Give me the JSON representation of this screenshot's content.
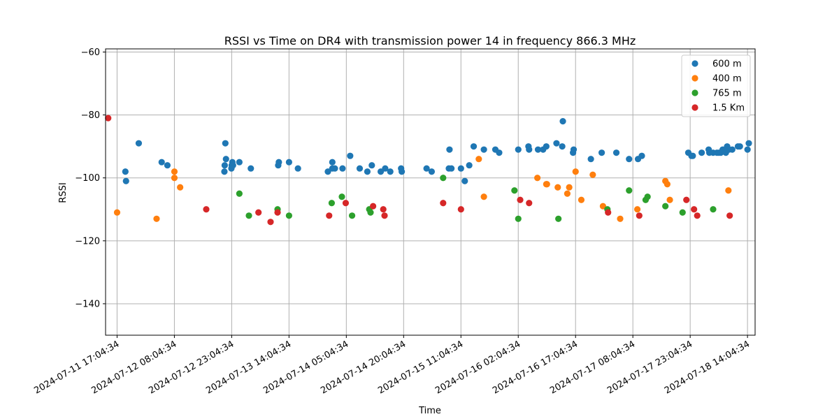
{
  "chart_data": {
    "type": "scatter",
    "title": "RSSI vs Time on DR4 with transmission power 14 in frequency 866.3 MHz",
    "xlabel": "Time",
    "ylabel": "RSSI",
    "ylim": [
      -150,
      -59
    ],
    "y_ticks": [
      -140,
      -120,
      -100,
      -80,
      -60
    ],
    "x_range": [
      "2024-07-11 14:04",
      "2024-07-18 16:04"
    ],
    "x_ticks": [
      "2024-07-11 17:04:34",
      "2024-07-12 08:04:34",
      "2024-07-12 23:04:34",
      "2024-07-13 14:04:34",
      "2024-07-14 05:04:34",
      "2024-07-14 20:04:34",
      "2024-07-15 11:04:34",
      "2024-07-16 02:04:34",
      "2024-07-16 17:04:34",
      "2024-07-17 08:04:34",
      "2024-07-17 23:04:34",
      "2024-07-18 14:04:34"
    ],
    "grid": true,
    "legend_position": "top-right",
    "series": [
      {
        "name": "600 m",
        "color": "#1f77b4",
        "points": [
          [
            "2024-07-11 19:15",
            -98
          ],
          [
            "2024-07-11 19:25",
            -101
          ],
          [
            "2024-07-11 22:45",
            -89
          ],
          [
            "2024-07-12 04:45",
            -95
          ],
          [
            "2024-07-12 06:15",
            -96
          ],
          [
            "2024-07-12 21:25",
            -89
          ],
          [
            "2024-07-12 21:15",
            -96
          ],
          [
            "2024-07-12 21:10",
            -98
          ],
          [
            "2024-07-12 21:35",
            -94
          ],
          [
            "2024-07-12 23:15",
            -95
          ],
          [
            "2024-07-12 23:05",
            -96
          ],
          [
            "2024-07-12 23:25",
            -96
          ],
          [
            "2024-07-12 23:00",
            -97
          ],
          [
            "2024-07-13 01:05",
            -95
          ],
          [
            "2024-07-13 04:05",
            -97
          ],
          [
            "2024-07-13 11:25",
            -95
          ],
          [
            "2024-07-13 11:15",
            -96
          ],
          [
            "2024-07-13 14:05",
            -95
          ],
          [
            "2024-07-13 16:25",
            -97
          ],
          [
            "2024-07-14 00:15",
            -98
          ],
          [
            "2024-07-14 01:25",
            -95
          ],
          [
            "2024-07-14 01:25",
            -97
          ],
          [
            "2024-07-14 02:05",
            -97
          ],
          [
            "2024-07-14 04:05",
            -97
          ],
          [
            "2024-07-14 06:05",
            -93
          ],
          [
            "2024-07-14 08:35",
            -97
          ],
          [
            "2024-07-14 10:35",
            -98
          ],
          [
            "2024-07-14 11:45",
            -96
          ],
          [
            "2024-07-14 14:05",
            -98
          ],
          [
            "2024-07-14 15:15",
            -97
          ],
          [
            "2024-07-14 16:35",
            -98
          ],
          [
            "2024-07-14 19:25",
            -97
          ],
          [
            "2024-07-14 19:35",
            -98
          ],
          [
            "2024-07-15 02:05",
            -97
          ],
          [
            "2024-07-15 03:25",
            -98
          ],
          [
            "2024-07-15 08:05",
            -91
          ],
          [
            "2024-07-15 07:55",
            -97
          ],
          [
            "2024-07-15 08:35",
            -97
          ],
          [
            "2024-07-15 11:05",
            -97
          ],
          [
            "2024-07-15 12:05",
            -101
          ],
          [
            "2024-07-15 13:15",
            -96
          ],
          [
            "2024-07-15 14:25",
            -90
          ],
          [
            "2024-07-15 17:05",
            -91
          ],
          [
            "2024-07-15 20:05",
            -91
          ],
          [
            "2024-07-15 21:05",
            -92
          ],
          [
            "2024-07-16 02:05",
            -91
          ],
          [
            "2024-07-16 04:45",
            -90
          ],
          [
            "2024-07-16 04:55",
            -91
          ],
          [
            "2024-07-16 07:15",
            -91
          ],
          [
            "2024-07-16 08:35",
            -91
          ],
          [
            "2024-07-16 09:25",
            -90
          ],
          [
            "2024-07-16 12:05",
            -89
          ],
          [
            "2024-07-16 13:35",
            -90
          ],
          [
            "2024-07-16 13:45",
            -82
          ],
          [
            "2024-07-16 16:35",
            -91
          ],
          [
            "2024-07-16 16:25",
            -92
          ],
          [
            "2024-07-16 21:05",
            -94
          ],
          [
            "2024-07-16 23:55",
            -92
          ],
          [
            "2024-07-17 03:45",
            -92
          ],
          [
            "2024-07-17 07:05",
            -94
          ],
          [
            "2024-07-17 09:25",
            -94
          ],
          [
            "2024-07-17 10:25",
            -93
          ],
          [
            "2024-07-17 22:35",
            -92
          ],
          [
            "2024-07-17 23:25",
            -93
          ],
          [
            "2024-07-17 23:45",
            -93
          ],
          [
            "2024-07-18 02:05",
            -92
          ],
          [
            "2024-07-18 03:55",
            -91
          ],
          [
            "2024-07-18 04:05",
            -92
          ],
          [
            "2024-07-18 05:05",
            -92
          ],
          [
            "2024-07-18 06:05",
            -92
          ],
          [
            "2024-07-18 06:35",
            -92
          ],
          [
            "2024-07-18 07:05",
            -92
          ],
          [
            "2024-07-18 07:35",
            -91
          ],
          [
            "2024-07-18 08:25",
            -92
          ],
          [
            "2024-07-18 08:45",
            -90
          ],
          [
            "2024-07-18 09:15",
            -91
          ],
          [
            "2024-07-18 10:05",
            -91
          ],
          [
            "2024-07-18 11:35",
            -90
          ],
          [
            "2024-07-18 12:05",
            -90
          ],
          [
            "2024-07-18 14:05",
            -91
          ],
          [
            "2024-07-18 14:25",
            -89
          ]
        ]
      },
      {
        "name": "400 m",
        "color": "#ff7f0e",
        "points": [
          [
            "2024-07-11 17:05",
            -111
          ],
          [
            "2024-07-12 03:25",
            -113
          ],
          [
            "2024-07-12 08:05",
            -100
          ],
          [
            "2024-07-12 08:05",
            -98
          ],
          [
            "2024-07-12 09:35",
            -103
          ],
          [
            "2024-07-15 15:45",
            -94
          ],
          [
            "2024-07-15 17:05",
            -106
          ],
          [
            "2024-07-16 07:05",
            -100
          ],
          [
            "2024-07-16 09:25",
            -102
          ],
          [
            "2024-07-16 09:35",
            -102
          ],
          [
            "2024-07-16 12:25",
            -103
          ],
          [
            "2024-07-16 14:55",
            -105
          ],
          [
            "2024-07-16 15:25",
            -103
          ],
          [
            "2024-07-16 17:05",
            -98
          ],
          [
            "2024-07-16 18:35",
            -107
          ],
          [
            "2024-07-16 21:35",
            -99
          ],
          [
            "2024-07-17 00:15",
            -109
          ],
          [
            "2024-07-17 04:45",
            -113
          ],
          [
            "2024-07-17 09:15",
            -110
          ],
          [
            "2024-07-17 16:35",
            -101
          ],
          [
            "2024-07-17 17:05",
            -102
          ],
          [
            "2024-07-17 17:45",
            -107
          ],
          [
            "2024-07-18 09:05",
            -104
          ]
        ]
      },
      {
        "name": "765 m",
        "color": "#2ca02c",
        "points": [
          [
            "2024-07-13 01:05",
            -105
          ],
          [
            "2024-07-13 03:35",
            -112
          ],
          [
            "2024-07-13 11:05",
            -110
          ],
          [
            "2024-07-13 14:05",
            -112
          ],
          [
            "2024-07-14 01:15",
            -108
          ],
          [
            "2024-07-14 03:55",
            -106
          ],
          [
            "2024-07-14 06:35",
            -112
          ],
          [
            "2024-07-14 11:05",
            -110
          ],
          [
            "2024-07-14 11:25",
            -111
          ],
          [
            "2024-07-15 06:25",
            -100
          ],
          [
            "2024-07-16 01:05",
            -104
          ],
          [
            "2024-07-16 02:05",
            -113
          ],
          [
            "2024-07-16 12:35",
            -113
          ],
          [
            "2024-07-17 01:25",
            -110
          ],
          [
            "2024-07-17 07:05",
            -104
          ],
          [
            "2024-07-17 11:25",
            -107
          ],
          [
            "2024-07-17 11:55",
            -106
          ],
          [
            "2024-07-17 16:35",
            -109
          ],
          [
            "2024-07-17 21:05",
            -111
          ],
          [
            "2024-07-18 05:05",
            -110
          ]
        ]
      },
      {
        "name": "1.5 Km",
        "color": "#d62728",
        "points": [
          [
            "2024-07-11 14:45",
            -81
          ],
          [
            "2024-07-12 16:25",
            -110
          ],
          [
            "2024-07-13 06:05",
            -111
          ],
          [
            "2024-07-13 09:15",
            -114
          ],
          [
            "2024-07-13 11:05",
            -111
          ],
          [
            "2024-07-14 00:35",
            -112
          ],
          [
            "2024-07-14 04:55",
            -108
          ],
          [
            "2024-07-14 12:05",
            -109
          ],
          [
            "2024-07-14 14:45",
            -110
          ],
          [
            "2024-07-14 15:05",
            -112
          ],
          [
            "2024-07-15 06:25",
            -108
          ],
          [
            "2024-07-15 11:05",
            -110
          ],
          [
            "2024-07-16 02:35",
            -107
          ],
          [
            "2024-07-16 04:55",
            -108
          ],
          [
            "2024-07-17 01:35",
            -111
          ],
          [
            "2024-07-17 09:45",
            -112
          ],
          [
            "2024-07-17 22:05",
            -107
          ],
          [
            "2024-07-18 00:05",
            -110
          ],
          [
            "2024-07-18 00:55",
            -112
          ],
          [
            "2024-07-18 09:25",
            -112
          ]
        ]
      }
    ]
  }
}
